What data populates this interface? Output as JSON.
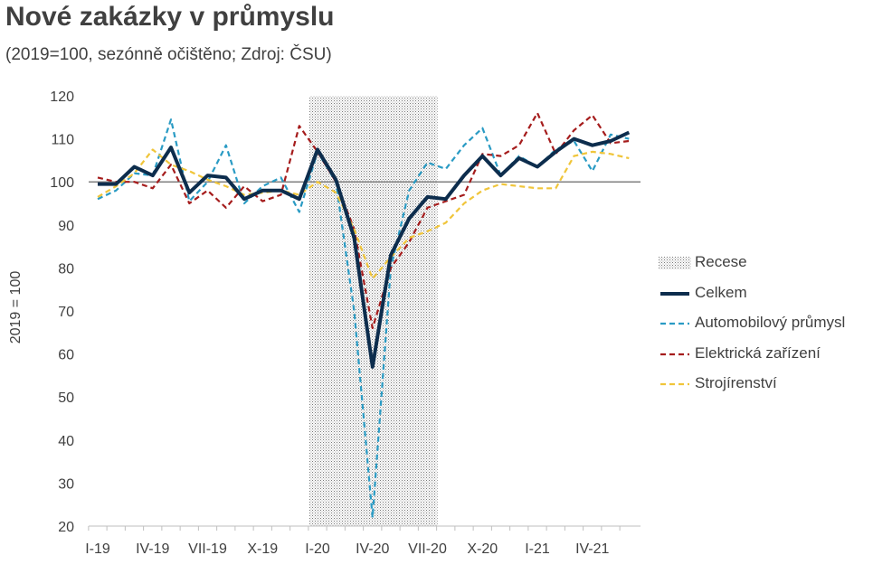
{
  "title": "Nové zakázky v průmyslu",
  "subtitle": "(2019=100, sezónně očištěno; Zdroj: ČSU)",
  "chart_data": {
    "type": "line",
    "title": "Nové zakázky v průmyslu",
    "subtitle": "(2019=100, sezónně očištěno; Zdroj: ČSU)",
    "ylabel": "2019 = 100",
    "xlabel": "",
    "ylim": [
      20,
      120
    ],
    "yticks": [
      20,
      30,
      40,
      50,
      60,
      70,
      80,
      90,
      100,
      110,
      120
    ],
    "x_tick_labels": [
      "I-19",
      "IV-19",
      "VII-19",
      "X-19",
      "I-20",
      "IV-20",
      "VII-20",
      "X-20",
      "I-21",
      "IV-21"
    ],
    "x_tick_label_months": [
      "I-19",
      "IV-19",
      "VII-19",
      "X-19",
      "I-20",
      "IV-20",
      "VII-20",
      "X-20",
      "I-21",
      "IV-21"
    ],
    "months": [
      "I-19",
      "II-19",
      "III-19",
      "IV-19",
      "V-19",
      "VI-19",
      "VII-19",
      "VIII-19",
      "IX-19",
      "X-19",
      "XI-19",
      "XII-19",
      "I-20",
      "II-20",
      "III-20",
      "IV-20",
      "V-20",
      "VI-20",
      "VII-20",
      "VIII-20",
      "IX-20",
      "X-20",
      "XI-20",
      "XII-20",
      "I-21",
      "II-21",
      "III-21",
      "IV-21",
      "V-21",
      "VI-21"
    ],
    "reference_line": 100,
    "recession": {
      "label": "Recese",
      "start": "I-20",
      "end": "VI-20"
    },
    "grid": false,
    "legend_position": "right",
    "series": [
      {
        "name": "Celkem",
        "style": "solid",
        "color": "#0d2d4d",
        "values": [
          99.5,
          99.5,
          103.5,
          101.5,
          108,
          97.5,
          101.5,
          101,
          96,
          98,
          98,
          96,
          107.5,
          100.5,
          87,
          57,
          83,
          91.5,
          96.5,
          96,
          101.5,
          106,
          101.5,
          105.5,
          103.5,
          107,
          110,
          108.5,
          109.5,
          111.5
        ]
      },
      {
        "name": "Automobilový průmysl",
        "style": "dashed",
        "color": "#2a9bc4",
        "values": [
          96,
          98,
          102,
          101.5,
          114.5,
          95.5,
          100,
          108.5,
          95,
          99,
          101,
          93,
          107,
          100,
          70,
          22,
          80,
          98,
          104.5,
          103,
          108.5,
          112.5,
          101.5,
          106,
          103.5,
          107.5,
          109.5,
          102.5,
          111,
          110
        ]
      },
      {
        "name": "Elektrická zařízení",
        "style": "dashed",
        "color": "#a51c1c",
        "values": [
          101,
          100,
          100,
          98.5,
          104,
          95,
          98,
          94,
          99,
          95.5,
          97,
          113,
          107,
          100,
          89,
          66,
          80,
          86,
          94,
          95.5,
          97,
          106.5,
          106,
          108.5,
          116,
          106.5,
          112,
          115.5,
          109,
          109.5
        ]
      },
      {
        "name": "Strojírenství",
        "style": "dashed",
        "color": "#f0c53a",
        "values": [
          96.5,
          99,
          102,
          107.5,
          104,
          102.5,
          100.5,
          99,
          97,
          97.5,
          98,
          97,
          100,
          97.5,
          89,
          77.5,
          82.5,
          87,
          88.5,
          90.5,
          95,
          98,
          99.5,
          99,
          98.5,
          98.5,
          106,
          107,
          106.5,
          105.5
        ]
      }
    ]
  },
  "legend": {
    "items": [
      {
        "label": "Recese",
        "type": "recession"
      },
      {
        "label": "Celkem",
        "type": "solid",
        "color": "#0d2d4d"
      },
      {
        "label": "Automobilový průmysl",
        "type": "dashed",
        "color": "#2a9bc4"
      },
      {
        "label": "Elektrická zařízení",
        "type": "dashed",
        "color": "#a51c1c"
      },
      {
        "label": "Strojírenství",
        "type": "dashed",
        "color": "#f0c53a"
      }
    ]
  }
}
